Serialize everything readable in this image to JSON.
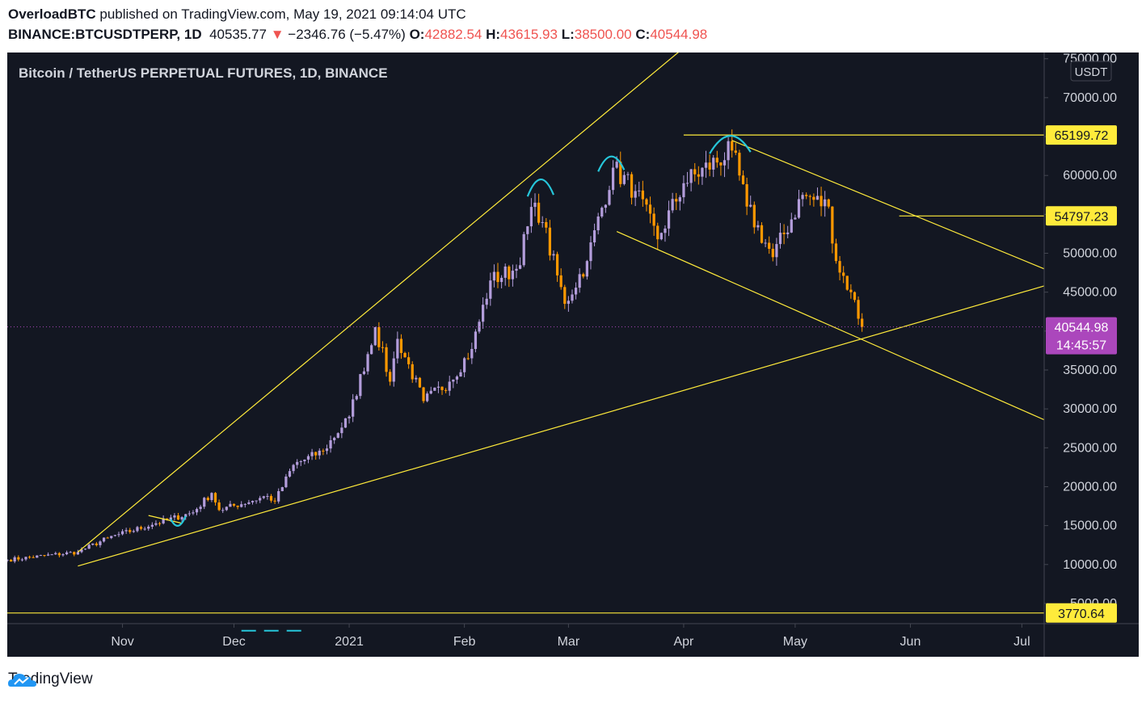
{
  "header": {
    "author": "OverloadBTC",
    "published": "published on TradingView.com, May 19, 2021 09:14:04 UTC",
    "symbol": "BINANCE:BTCUSDTPERP, 1D",
    "last": "40535.77",
    "arrow": "▼",
    "change": "−2346.76 (−5.47%)",
    "o_label": "O:",
    "o": "42882.54",
    "h_label": "H:",
    "h": "43615.93",
    "l_label": "L:",
    "l": "38500.00",
    "c_label": "C:",
    "c": "40544.98"
  },
  "chart_title": "Bitcoin / TetherUS PERPETUAL FUTURES, 1D, BINANCE",
  "currency": "USDT",
  "price_labels": {
    "p65": "65199.72",
    "p54": "54797.23",
    "last": "40544.98",
    "countdown": "14:45:57",
    "p3": "3770.64"
  },
  "footer": {
    "brand": "TradingView"
  },
  "colors": {
    "background": "#131722",
    "up": "#b39ddb",
    "down": "#ff9800",
    "trendline": "#ffeb3b",
    "arc": "#26c6da",
    "last_label": "#ab47bc"
  },
  "chart_data": {
    "type": "candlestick",
    "title": "Bitcoin / TetherUS PERPETUAL FUTURES, 1D, BINANCE",
    "y_axis_ticks": [
      5000,
      10000,
      15000,
      20000,
      25000,
      30000,
      35000,
      40000,
      45000,
      50000,
      55000,
      60000,
      65000,
      70000,
      75000
    ],
    "x_axis_ticks": [
      "Nov",
      "Dec",
      "2021",
      "Feb",
      "Mar",
      "Apr",
      "May",
      "Jun",
      "Jul"
    ],
    "x_range": [
      "2020-10-01",
      "2021-07-07"
    ],
    "y_range": [
      2400,
      75800
    ],
    "last_price": 40544.98,
    "horizontal_levels": [
      65199.72,
      54797.23,
      3770.64
    ],
    "price_keyframes": [
      [
        "2020-10-01",
        10600
      ],
      [
        "2020-10-20",
        11600
      ],
      [
        "2020-10-28",
        13400
      ],
      [
        "2020-11-10",
        15300
      ],
      [
        "2020-11-20",
        16700
      ],
      [
        "2020-11-25",
        19200
      ],
      [
        "2020-11-27",
        17000
      ],
      [
        "2020-12-10",
        18800
      ],
      [
        "2020-12-12",
        18100
      ],
      [
        "2020-12-17",
        22800
      ],
      [
        "2020-12-25",
        24600
      ],
      [
        "2021-01-01",
        29000
      ],
      [
        "2021-01-08",
        40500
      ],
      [
        "2021-01-12",
        33500
      ],
      [
        "2021-01-14",
        39000
      ],
      [
        "2021-01-21",
        31000
      ],
      [
        "2021-01-28",
        33500
      ],
      [
        "2021-02-03",
        37700
      ],
      [
        "2021-02-08",
        46500
      ],
      [
        "2021-02-15",
        48000
      ],
      [
        "2021-02-20",
        56500
      ],
      [
        "2021-02-22",
        54000
      ],
      [
        "2021-02-28",
        43500
      ],
      [
        "2021-03-06",
        49000
      ],
      [
        "2021-03-13",
        61000
      ],
      [
        "2021-03-19",
        58000
      ],
      [
        "2021-03-25",
        51800
      ],
      [
        "2021-04-01",
        59000
      ],
      [
        "2021-04-14",
        63200
      ],
      [
        "2021-04-18",
        56000
      ],
      [
        "2021-04-25",
        49500
      ],
      [
        "2021-05-03",
        57500
      ],
      [
        "2021-05-10",
        56000
      ],
      [
        "2021-05-12",
        49000
      ],
      [
        "2021-05-16",
        45000
      ],
      [
        "2021-05-19",
        40545
      ]
    ],
    "trendlines": [
      {
        "from": [
          "2020-10-20",
          11600
        ],
        "to": [
          "2021-03-31",
          76000
        ]
      },
      {
        "from": [
          "2020-10-20",
          9800
        ],
        "to": [
          "2021-07-07",
          45800
        ]
      },
      {
        "from": [
          "2021-04-14",
          64500
        ],
        "to": [
          "2021-07-07",
          48000
        ]
      },
      {
        "from": [
          "2021-03-14",
          52800
        ],
        "to": [
          "2021-07-07",
          28600
        ]
      }
    ]
  }
}
